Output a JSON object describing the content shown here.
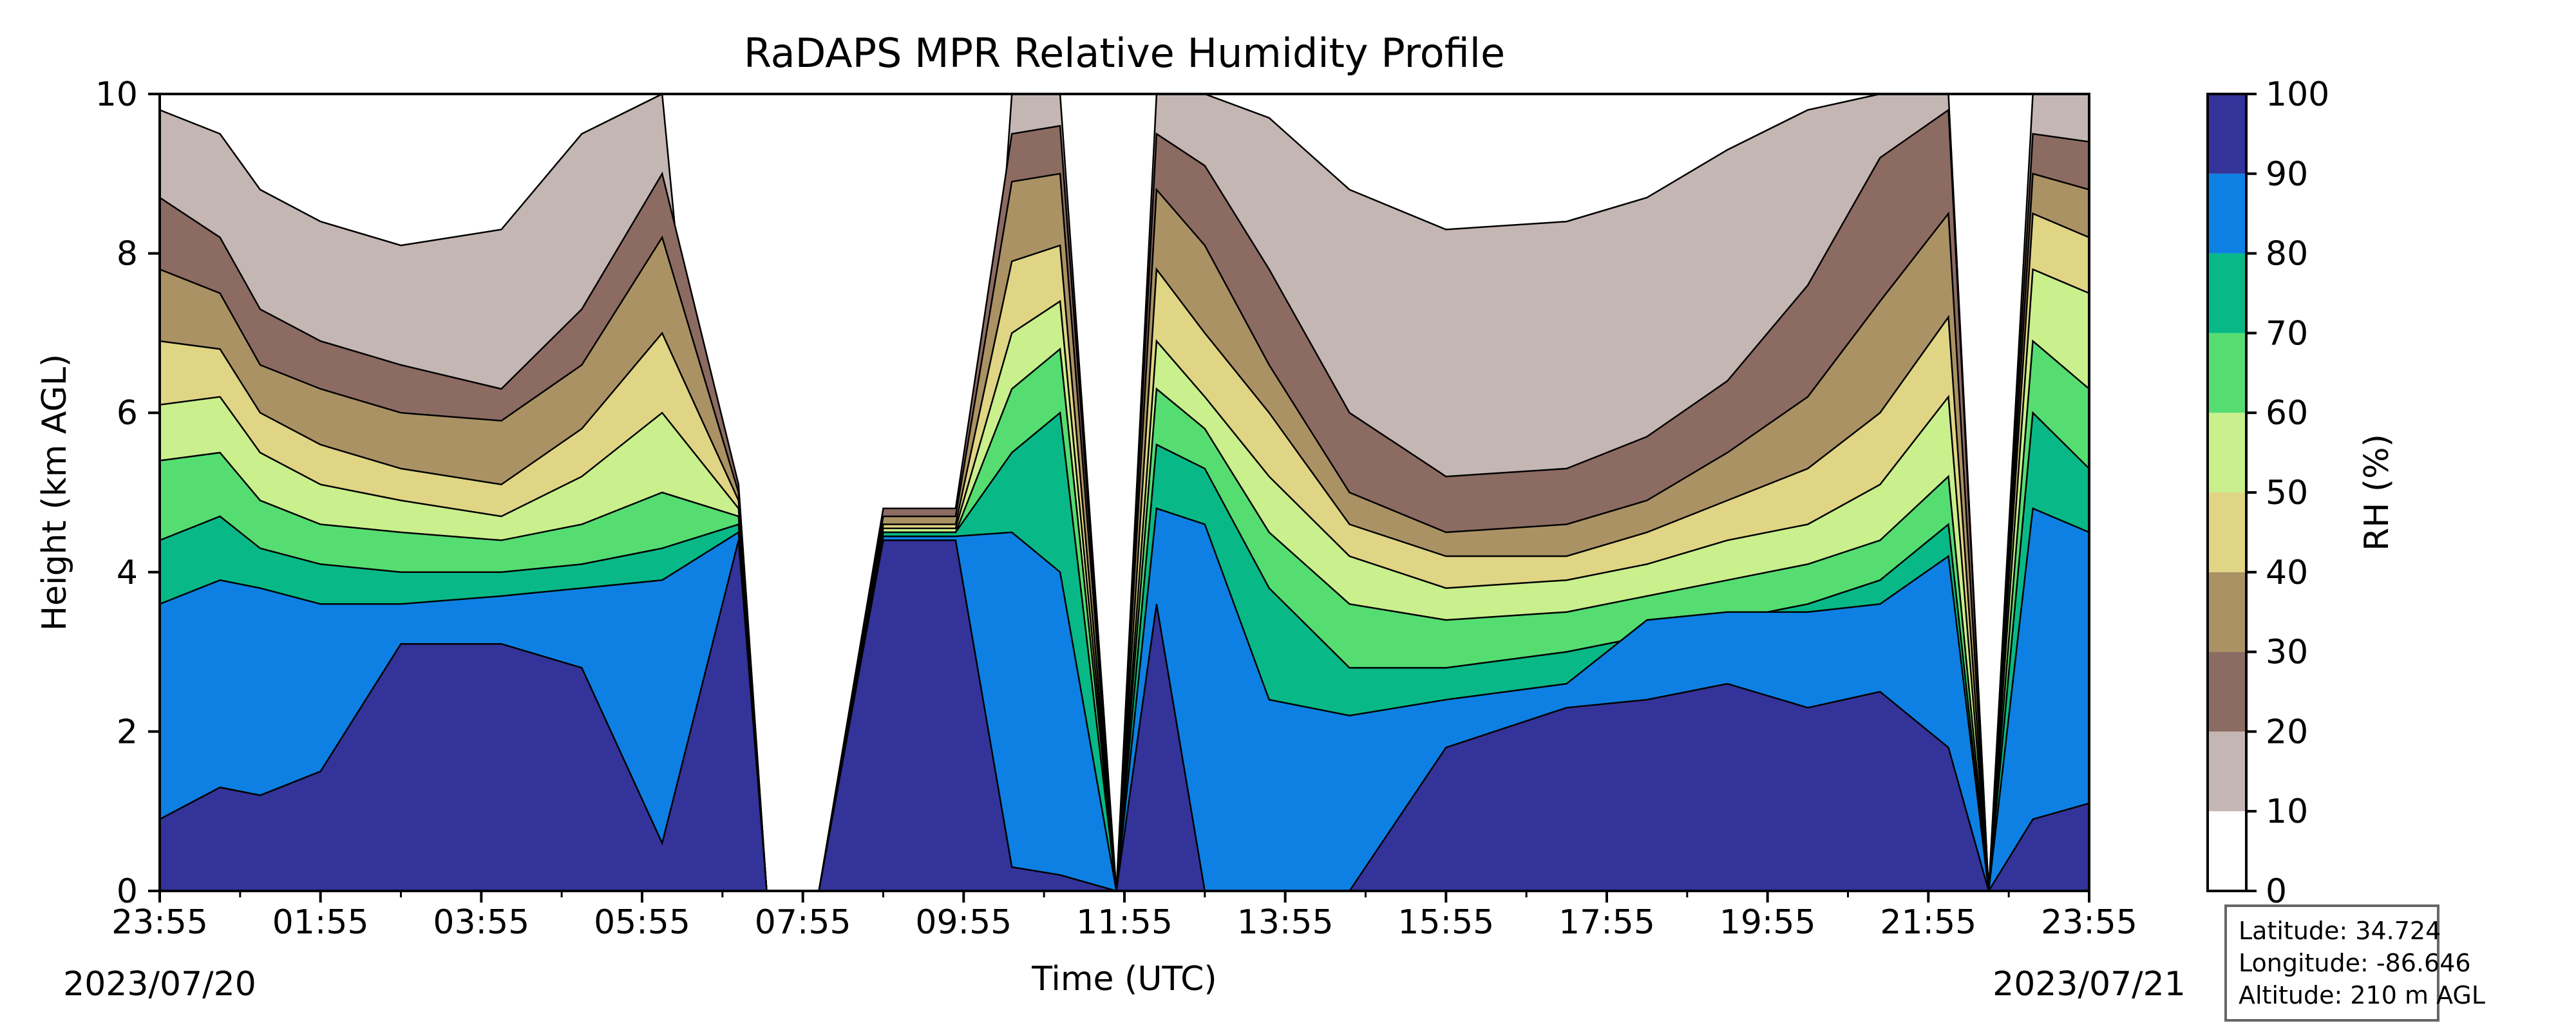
{
  "chart_data": {
    "type": "heatmap",
    "title": "RaDAPS MPR Relative Humidity Profile",
    "xlabel": "Time (UTC)",
    "ylabel": "Height (km AGL)",
    "colorbar_label": "RH (%)",
    "x_ticks": [
      "23:55",
      "01:55",
      "03:55",
      "05:55",
      "07:55",
      "09:55",
      "11:55",
      "13:55",
      "15:55",
      "17:55",
      "19:55",
      "21:55",
      "23:55"
    ],
    "x_range_hours": [
      0,
      24
    ],
    "y_ticks": [
      "0",
      "2",
      "4",
      "6",
      "8",
      "10"
    ],
    "ylim_km": [
      0,
      10
    ],
    "start_date": "2023/07/20",
    "end_date": "2023/07/21",
    "colorbar_ticks": [
      "0",
      "10",
      "20",
      "30",
      "40",
      "50",
      "60",
      "70",
      "80",
      "90",
      "100"
    ],
    "levels": [
      0,
      10,
      20,
      30,
      40,
      50,
      60,
      70,
      80,
      90,
      100
    ],
    "level_colors": [
      "#ffffff",
      "#c4b6b3",
      "#8c6b62",
      "#aa9264",
      "#e0d584",
      "#c9f08c",
      "#55dd72",
      "#08b987",
      "#0e80e3",
      "#333399"
    ],
    "profile_hours": [
      0,
      0.75,
      1.25,
      2,
      3,
      4.25,
      5.25,
      6.25,
      7.2,
      7.55,
      8.2,
      9,
      9.9,
      10.6,
      11.2,
      11.9,
      12.4,
      13,
      13.8,
      14.8,
      16,
      17.5,
      18.5,
      19.5,
      20.5,
      21.4,
      22.25,
      22.75,
      23.3,
      24
    ],
    "freezing_top_km": [
      0,
      0,
      0,
      0,
      0,
      0,
      0,
      0,
      5,
      10,
      10,
      4.6,
      4.6,
      0,
      0,
      10,
      0,
      0,
      0,
      0,
      0,
      0,
      0,
      0,
      0,
      0,
      0,
      10,
      0,
      0
    ],
    "rh_above_top_km": [
      10,
      10,
      10,
      10,
      10,
      10,
      10,
      10,
      10,
      10,
      10,
      10,
      10,
      10,
      10,
      10,
      10,
      10,
      10,
      10,
      10,
      10,
      10,
      10,
      10,
      10,
      10,
      10,
      10,
      10
    ],
    "contour_heights_km": [
      [
        9.8,
        9.5,
        8.8,
        8.4,
        8.1,
        8.3,
        9.5,
        10,
        0,
        0,
        0,
        0,
        0,
        10,
        10,
        0,
        10,
        10,
        9.7,
        8.8,
        8.3,
        8.4,
        8.7,
        9.3,
        9.8,
        10,
        10,
        0,
        10,
        10
      ],
      [
        8.7,
        8.2,
        7.3,
        6.9,
        6.6,
        6.3,
        7.3,
        9,
        5.1,
        0,
        0,
        4.8,
        4.8,
        9.5,
        9.6,
        0,
        9.5,
        9.1,
        7.8,
        6,
        5.2,
        5.3,
        5.7,
        6.4,
        7.6,
        9.2,
        9.8,
        0,
        9.5,
        9.4
      ],
      [
        7.8,
        7.5,
        6.6,
        6.3,
        6,
        5.9,
        6.6,
        8.2,
        5,
        0,
        0,
        4.7,
        4.7,
        8.9,
        9,
        0,
        8.8,
        8.1,
        6.6,
        5,
        4.5,
        4.6,
        4.9,
        5.5,
        6.2,
        7.4,
        8.5,
        0,
        9,
        8.8
      ],
      [
        6.9,
        6.8,
        6,
        5.6,
        5.3,
        5.1,
        5.8,
        7,
        4.9,
        0,
        0,
        4.6,
        4.6,
        7.9,
        8.1,
        0,
        7.8,
        7,
        6,
        4.6,
        4.2,
        4.2,
        4.5,
        4.9,
        5.3,
        6,
        7.2,
        0,
        8.5,
        8.2
      ],
      [
        6.1,
        6.2,
        5.5,
        5.1,
        4.9,
        4.7,
        5.2,
        6,
        4.8,
        0,
        0,
        4.55,
        4.55,
        7,
        7.4,
        0,
        6.9,
        6.2,
        5.2,
        4.2,
        3.8,
        3.9,
        4.1,
        4.4,
        4.6,
        5.1,
        6.2,
        0,
        7.8,
        7.5
      ],
      [
        5.4,
        5.5,
        4.9,
        4.6,
        4.5,
        4.4,
        4.6,
        5,
        4.7,
        0,
        0,
        4.5,
        4.5,
        6.3,
        6.8,
        0,
        6.3,
        5.8,
        4.5,
        3.6,
        3.4,
        3.5,
        3.7,
        3.9,
        4.1,
        4.4,
        5.2,
        0,
        6.9,
        6.3
      ],
      [
        4.4,
        4.7,
        4.3,
        4.1,
        4,
        4,
        4.1,
        4.3,
        4.6,
        0,
        0,
        4.5,
        4.5,
        5.5,
        6,
        0,
        5.6,
        5.3,
        3.8,
        2.8,
        2.8,
        3,
        3.2,
        3.4,
        3.6,
        3.9,
        4.6,
        0,
        6,
        5.3
      ],
      [
        3.6,
        3.9,
        3.8,
        3.6,
        3.6,
        3.7,
        3.8,
        3.9,
        4.5,
        0,
        0,
        4.45,
        4.45,
        4.5,
        4,
        0,
        4.8,
        4.6,
        2.4,
        2.2,
        2.4,
        2.6,
        3.4,
        3.5,
        3.5,
        3.6,
        4.2,
        0,
        4.8,
        4.5
      ],
      [
        0.9,
        1.3,
        1.2,
        1.5,
        3.1,
        3.1,
        2.8,
        0.6,
        4.4,
        0,
        0,
        4.4,
        4.4,
        0.3,
        0.2,
        0,
        3.6,
        0,
        0,
        0,
        1.8,
        2.3,
        2.4,
        2.6,
        2.3,
        2.5,
        1.8,
        0,
        0.9,
        1.1
      ]
    ],
    "info": {
      "latitude": "Latitude: 34.724",
      "longitude": "Longitude: -86.646",
      "altitude": "Altitude: 210 m AGL"
    }
  }
}
